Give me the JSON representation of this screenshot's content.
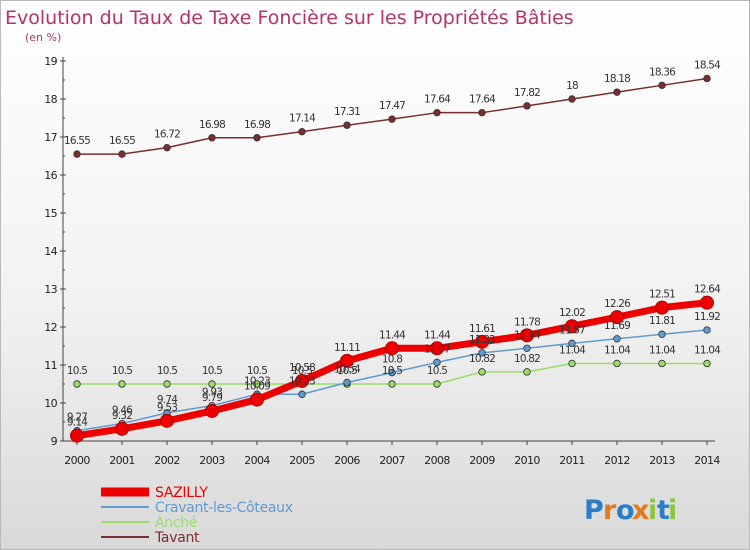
{
  "chart_data": {
    "type": "line",
    "title": "Evolution du Taux de Taxe Foncière sur les Propriétés Bâties",
    "subtitle": "(en %)",
    "xlabel": "",
    "ylabel": "",
    "x": [
      2000,
      2001,
      2002,
      2003,
      2004,
      2005,
      2006,
      2007,
      2008,
      2009,
      2010,
      2011,
      2012,
      2013,
      2014
    ],
    "ylim": [
      9,
      19
    ],
    "yticks": [
      9,
      10,
      11,
      12,
      13,
      14,
      15,
      16,
      17,
      18,
      19
    ],
    "legend_position": "bottom-left",
    "series": [
      {
        "name": "Tavant",
        "color": "#7a2e2e",
        "values": [
          16.55,
          16.55,
          16.72,
          16.98,
          16.98,
          17.14,
          17.31,
          17.47,
          17.64,
          17.64,
          17.82,
          18,
          18.18,
          18.36,
          18.54
        ]
      },
      {
        "name": "Anché",
        "color": "#99dd66",
        "values": [
          10.5,
          10.5,
          10.5,
          10.5,
          10.5,
          10.5,
          10.5,
          10.5,
          10.5,
          10.82,
          10.82,
          11.04,
          11.04,
          11.04,
          11.04
        ]
      },
      {
        "name": "Cravant-les-Côteaux",
        "color": "#5f9bd1",
        "values": [
          9.27,
          9.46,
          9.74,
          9.93,
          10.23,
          10.23,
          10.54,
          10.8,
          11.07,
          11.32,
          11.44,
          11.57,
          11.69,
          11.81,
          11.92
        ]
      },
      {
        "name": "SAZILLY",
        "color": "#ee0000",
        "values": [
          9.14,
          9.32,
          9.53,
          9.79,
          10.09,
          10.58,
          11.11,
          11.44,
          11.44,
          11.61,
          11.78,
          12.02,
          12.26,
          12.51,
          12.64
        ]
      }
    ],
    "legend_order": [
      "SAZILLY",
      "Cravant-les-Côteaux",
      "Anché",
      "Tavant"
    ],
    "grid": false
  },
  "watermark": {
    "letters": [
      "P",
      "r",
      "o",
      "x",
      "i",
      "t",
      "i"
    ]
  }
}
